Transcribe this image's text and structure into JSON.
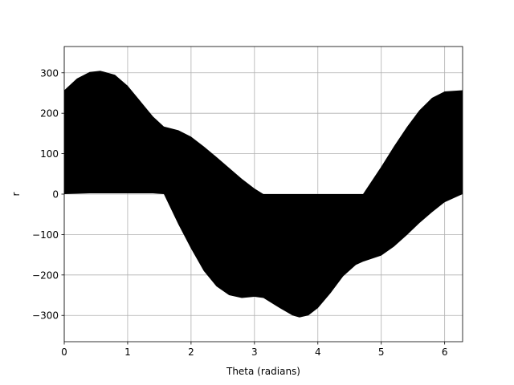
{
  "chart_data": {
    "type": "area",
    "title": "",
    "xlabel": "Theta (radians)",
    "ylabel": "r",
    "xlim": [
      0,
      6.283
    ],
    "ylim": [
      -365,
      365
    ],
    "grid": true,
    "xticks": [
      0,
      1,
      2,
      3,
      4,
      5,
      6
    ],
    "xtick_labels": [
      "0",
      "1",
      "2",
      "3",
      "4",
      "5",
      "6"
    ],
    "yticks": [
      300,
      200,
      100,
      0,
      -100,
      -200,
      -300
    ],
    "ytick_labels": [
      "300",
      "200",
      "100",
      "0",
      "−100",
      "−200",
      "−300"
    ],
    "fill_color": "#000000",
    "series": [
      {
        "fill_between": {
          "x": [
            0,
            0.2,
            0.4,
            0.57,
            0.8,
            1.0,
            1.2,
            1.4,
            1.571,
            1.8,
            2.0,
            2.2,
            2.4,
            2.6,
            2.8,
            3.0,
            3.142,
            3.4,
            3.6,
            3.71,
            3.85,
            4.0,
            4.2,
            4.4,
            4.6,
            4.712,
            5.0,
            5.2,
            5.4,
            5.6,
            5.8,
            6.0,
            6.283
          ],
          "upper": [
            257,
            286,
            302,
            305,
            295,
            268,
            230,
            192,
            167,
            158,
            142,
            118,
            92,
            65,
            38,
            14,
            0,
            0,
            0,
            0,
            0,
            0,
            0,
            0,
            0,
            0,
            68,
            118,
            165,
            207,
            238,
            254,
            257
          ],
          "lower": [
            0,
            1,
            2,
            2,
            2,
            2,
            2,
            2,
            0,
            -75,
            -135,
            -190,
            -228,
            -250,
            -257,
            -254,
            -257,
            -282,
            -300,
            -305,
            -300,
            -282,
            -245,
            -203,
            -175,
            -167,
            -152,
            -130,
            -102,
            -72,
            -45,
            -20,
            0
          ]
        }
      }
    ]
  }
}
